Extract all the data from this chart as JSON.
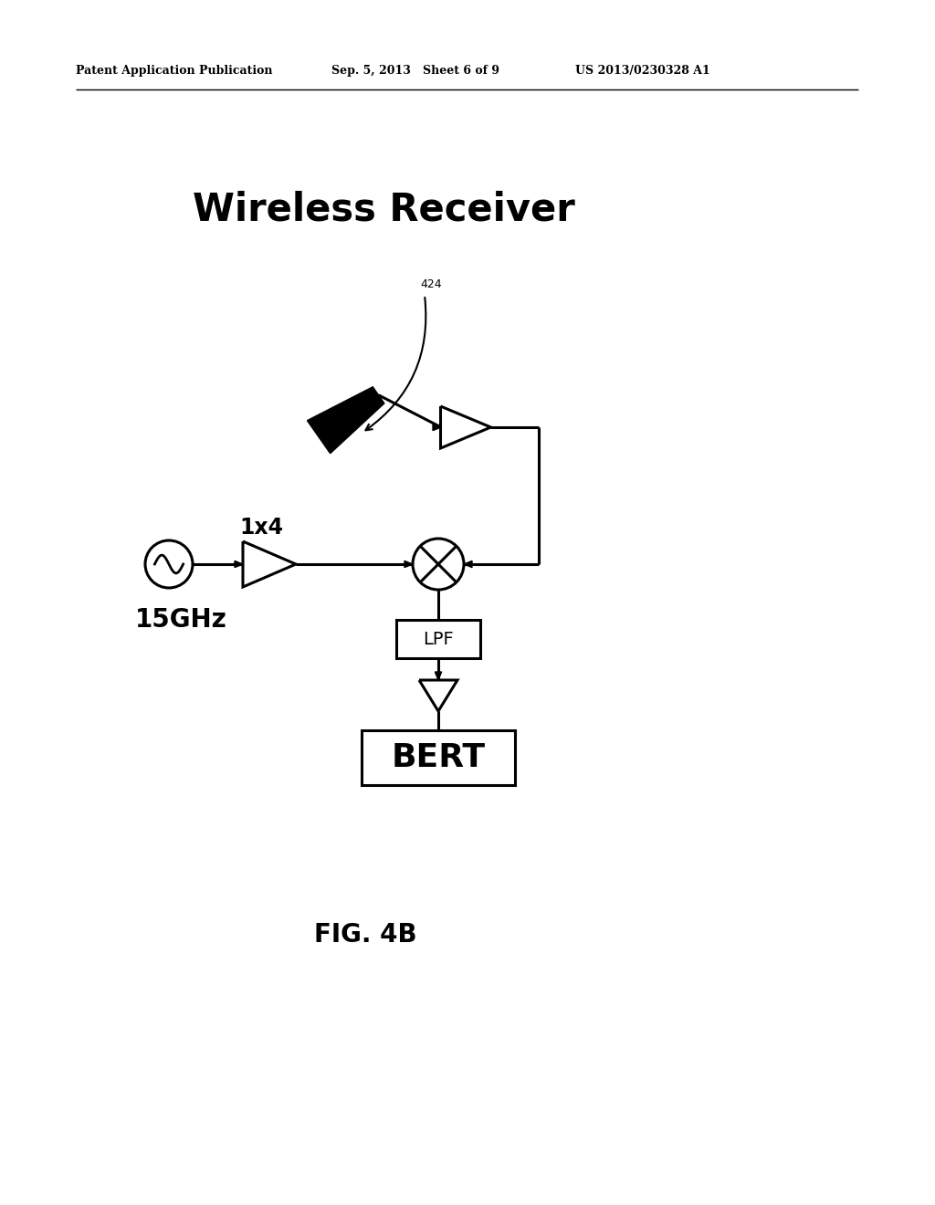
{
  "bg_color": "#ffffff",
  "title": "Wireless Receiver",
  "fig_caption": "FIG. 4B",
  "header_left": "Patent Application Publication",
  "header_mid": "Sep. 5, 2013   Sheet 6 of 9",
  "header_right": "US 2013/0230328 A1",
  "label_15ghz": "15GHz",
  "label_1x4": "1x4",
  "label_424": "424",
  "label_lpf": "LPF",
  "label_bert": "BERT",
  "line_color": "#000000",
  "lw": 2.2
}
